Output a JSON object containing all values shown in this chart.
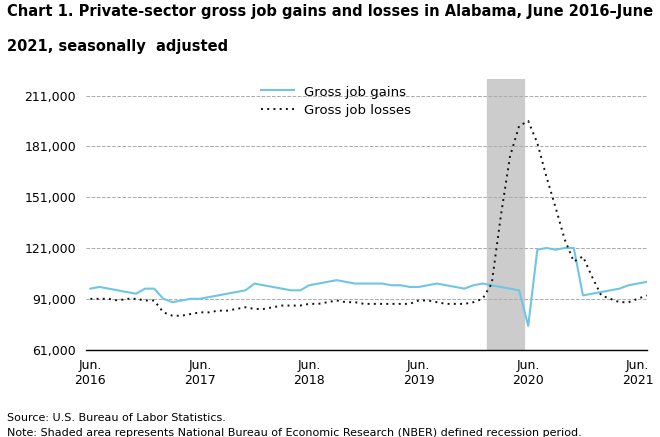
{
  "title_line1": "Chart 1. Private-sector gross job gains and losses in Alabama, June 2016–June",
  "title_line2": "2021, seasonally  adjusted",
  "title_fontsize": 10.5,
  "source_text": "Source: U.S. Bureau of Labor Statistics.",
  "note_text": "Note: Shaded area represents National Bureau of Economic Research (NBER) defined recession period.",
  "legend_gains": "Gross job gains",
  "legend_losses": "Gross job losses",
  "gains_color": "#6EC6E6",
  "losses_color": "#111111",
  "shaded_start": 43.5,
  "shaded_end": 47.5,
  "ylim": [
    61000,
    221000
  ],
  "yticks": [
    61000,
    91000,
    121000,
    151000,
    181000,
    211000
  ],
  "xtick_labels": [
    "Jun.\n2016",
    "Jun.\n2017",
    "Jun.\n2018",
    "Jun.\n2019",
    "Jun.\n2020",
    "Jun.\n2021"
  ],
  "xtick_positions": [
    0,
    12,
    24,
    36,
    48,
    60
  ],
  "gains": [
    97000,
    98000,
    97000,
    96000,
    95000,
    94000,
    97000,
    97000,
    91000,
    89000,
    90000,
    91000,
    91000,
    92000,
    93000,
    94000,
    95000,
    96000,
    100000,
    99000,
    98000,
    97000,
    96000,
    96000,
    99000,
    100000,
    101000,
    102000,
    101000,
    100000,
    100000,
    100000,
    100000,
    99000,
    99000,
    98000,
    98000,
    99000,
    100000,
    99000,
    98000,
    97000,
    99000,
    100000,
    99000,
    98000,
    97000,
    96000,
    75000,
    120000,
    121000,
    120000,
    121000,
    121000,
    93000,
    94000,
    95000,
    96000,
    97000,
    99000,
    100000,
    101000
  ],
  "losses": [
    91000,
    91000,
    91000,
    90000,
    91000,
    91000,
    90000,
    90000,
    83000,
    81000,
    81000,
    82000,
    83000,
    83000,
    84000,
    84000,
    85000,
    86000,
    85000,
    85000,
    86000,
    87000,
    87000,
    87000,
    88000,
    88000,
    89000,
    90000,
    89000,
    89000,
    88000,
    88000,
    88000,
    88000,
    88000,
    88000,
    90000,
    90000,
    89000,
    88000,
    88000,
    88000,
    89000,
    91000,
    100000,
    140000,
    175000,
    193000,
    196000,
    183000,
    163000,
    145000,
    126000,
    113000,
    116000,
    104000,
    93000,
    91000,
    89000,
    89000,
    91000,
    93000
  ],
  "background_color": "#ffffff",
  "grid_color": "#aaaaaa",
  "shaded_color": "#cccccc"
}
